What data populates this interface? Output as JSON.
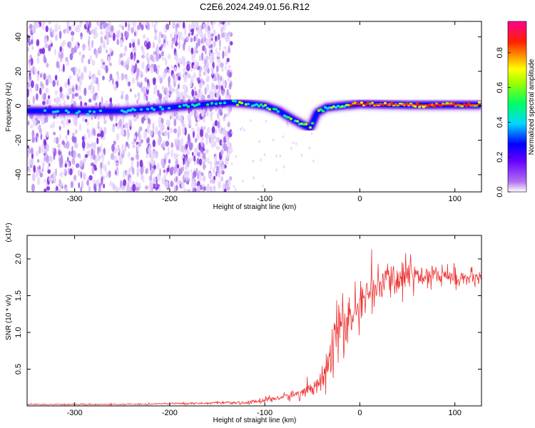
{
  "figure": {
    "title": "C2E6.2024.249.01.56.R12"
  },
  "chart_data": [
    {
      "type": "heatmap",
      "name": "spectrogram",
      "xlabel": "Height of straight line (km)",
      "ylabel": "Frequency (Hz)",
      "xlim": [
        -350,
        128
      ],
      "ylim": [
        -50,
        49
      ],
      "xticks": [
        -300,
        -200,
        -100,
        0,
        100
      ],
      "yticks": [
        -40,
        -20,
        0,
        20,
        40
      ],
      "colorbar": {
        "label": "Normalized spectral amplitude",
        "range": [
          0,
          0.98
        ],
        "ticks": [
          "0.0",
          "0.2",
          "0.4",
          "0.6",
          "0.8"
        ],
        "colormap": [
          "#ffffff",
          "#8a2be2",
          "#0000ff",
          "#00ffff",
          "#00ff00",
          "#ffff00",
          "#ff8000",
          "#ff0000",
          "#ff00aa"
        ]
      },
      "ridge": {
        "x": [
          -345,
          -300,
          -250,
          -200,
          -160,
          -135,
          -115,
          -100,
          -85,
          -70,
          -60,
          -52,
          -45,
          -35,
          -20,
          0,
          50,
          100,
          128
        ],
        "y": [
          -3,
          -3,
          -3,
          -1,
          1,
          2,
          1,
          0,
          -3,
          -8,
          -11,
          -13,
          -4,
          -1,
          0,
          1,
          0.5,
          0.5,
          0.5
        ]
      }
    },
    {
      "type": "line",
      "name": "snr",
      "xlabel": "Height of straight line (km)",
      "ylabel": "SNR (10 * v/v)",
      "y_multiplier": "(x10⁴)",
      "xlim": [
        -350,
        128
      ],
      "ylim": [
        0,
        2.32
      ],
      "xticks": [
        -300,
        -200,
        -100,
        0,
        100
      ],
      "yticks": [
        "0.5",
        "1.0",
        "1.5",
        "2.0"
      ],
      "color": "#ee3333",
      "x": [
        -350,
        -300,
        -250,
        -200,
        -150,
        -120,
        -100,
        -80,
        -60,
        -50,
        -40,
        -30,
        -25,
        -20,
        -15,
        -10,
        -5,
        0,
        10,
        20,
        30,
        40,
        50,
        60,
        70,
        80,
        90,
        100,
        110,
        128
      ],
      "y": [
        0.02,
        0.02,
        0.02,
        0.03,
        0.04,
        0.04,
        0.08,
        0.12,
        0.18,
        0.25,
        0.4,
        0.65,
        0.95,
        1.15,
        1.05,
        1.2,
        1.25,
        1.4,
        1.55,
        1.62,
        1.7,
        1.75,
        1.78,
        1.8,
        1.78,
        1.8,
        1.76,
        1.75,
        1.74,
        1.72
      ],
      "noise": [
        0.01,
        0.01,
        0.01,
        0.015,
        0.02,
        0.02,
        0.05,
        0.06,
        0.1,
        0.14,
        0.22,
        0.35,
        0.5,
        0.55,
        0.45,
        0.4,
        0.35,
        0.3,
        0.28,
        0.28,
        0.3,
        0.3,
        0.28,
        0.26,
        0.22,
        0.24,
        0.2,
        0.16,
        0.14,
        0.12
      ]
    }
  ]
}
